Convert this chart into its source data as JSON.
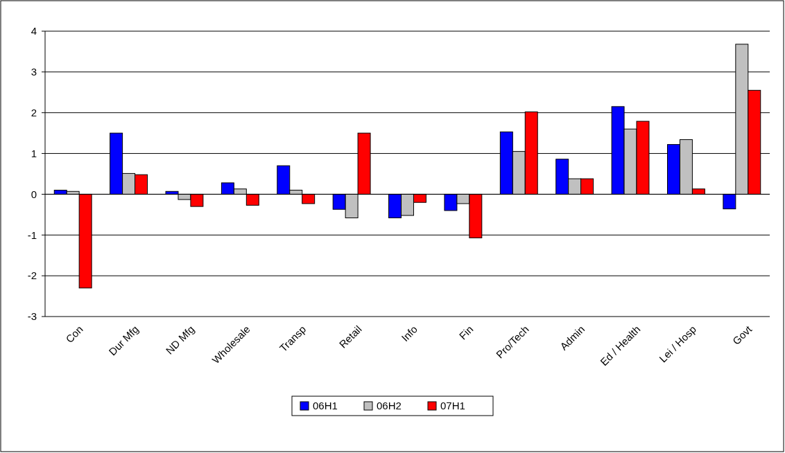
{
  "chart_data": {
    "type": "bar",
    "categories": [
      "Con",
      "Dur Mfg",
      "ND Mfg",
      "Wholesale",
      "Transp",
      "Retail",
      "Info",
      "Fin",
      "Pro/Tech",
      "Admin",
      "Ed / Health",
      "Lei / Hosp",
      "Govt"
    ],
    "series": [
      {
        "name": "06H1",
        "color": "#0000ff",
        "values": [
          0.1,
          1.5,
          0.07,
          0.28,
          0.7,
          -0.37,
          -0.58,
          -0.4,
          1.53,
          0.86,
          2.15,
          1.22,
          -0.36
        ]
      },
      {
        "name": "06H2",
        "color": "#c0c0c0",
        "values": [
          0.07,
          0.51,
          -0.13,
          0.13,
          0.1,
          -0.58,
          -0.52,
          -0.23,
          1.05,
          0.38,
          1.6,
          1.34,
          3.68
        ]
      },
      {
        "name": "07H1",
        "color": "#ff0000",
        "values": [
          -2.3,
          0.48,
          -0.3,
          -0.27,
          -0.23,
          1.5,
          -0.2,
          -1.07,
          2.02,
          0.38,
          1.79,
          0.13,
          2.55
        ]
      }
    ],
    "ylim": [
      -3,
      4
    ],
    "yticks": [
      -3,
      -2,
      -1,
      0,
      1,
      2,
      3,
      4
    ],
    "grid": "y",
    "legend": "bottom"
  }
}
